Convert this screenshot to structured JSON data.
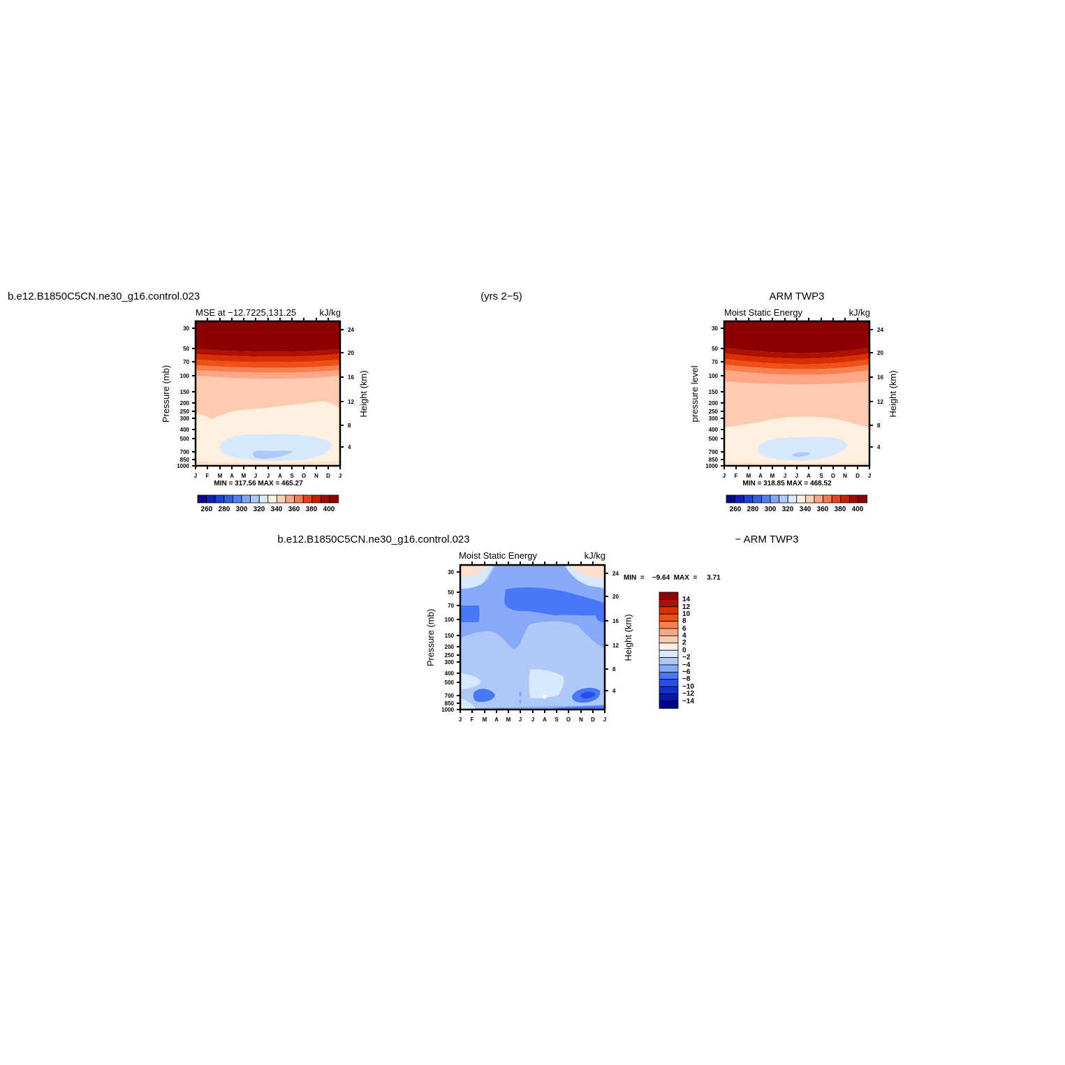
{
  "header": {
    "case_name": "b.e12.B1850C5CN.ne30_g16.control.023",
    "years": "(yrs 2−5)",
    "obs_name": "ARM  TWP3",
    "diff_case_name": "b.e12.B1850C5CN.ne30_g16.control.023",
    "diff_obs_name": "− ARM  TWP3"
  },
  "panels": {
    "model": {
      "subtitle": "MSE  at  −12.7225,131.25",
      "units": "kJ/kg",
      "ylabel": "Pressure  (mb)",
      "y2label": "Height  (km)",
      "minmax": "MIN  =  317.56  MAX  =  465.27"
    },
    "obs": {
      "subtitle": "Moist  Static  Energy",
      "units": "kJ/kg",
      "ylabel": "pressure  level",
      "y2label": "Height  (km)",
      "minmax": "MIN  =  318.85  MAX  =  468.52"
    },
    "diff": {
      "subtitle": "Moist  Static  Energy",
      "units": "kJ/kg",
      "ylabel": "Pressure  (mb)",
      "y2label": "Height  (km)",
      "minmax": "MIN  =    −9.64  MAX  =     3.71"
    }
  },
  "chart_data": [
    {
      "type": "heatmap",
      "title": "MSE  at  −12.7225,131.25",
      "xlabel": "",
      "ylabel": "Pressure  (mb)",
      "y2label": "Height  (km)",
      "units": "kJ/kg",
      "x_ticks": [
        "J",
        "F",
        "M",
        "A",
        "M",
        "J",
        "J",
        "A",
        "S",
        "O",
        "N",
        "D",
        "J"
      ],
      "y_ticks": [
        30,
        50,
        70,
        100,
        150,
        200,
        250,
        300,
        400,
        500,
        700,
        850,
        1000
      ],
      "y2_ticks": [
        4,
        8,
        12,
        16,
        20,
        24
      ],
      "ylim": [
        1000,
        25
      ],
      "y_scale": "log",
      "min": 317.56,
      "max": 465.27,
      "levels": [
        260,
        270,
        280,
        290,
        300,
        310,
        320,
        330,
        340,
        350,
        360,
        370,
        380,
        390,
        400
      ],
      "colorbar_labels": [
        "260",
        "280",
        "300",
        "320",
        "340",
        "360",
        "380",
        "400"
      ],
      "colorbar_colors": [
        "#08088c",
        "#1020b0",
        "#2040d0",
        "#3060e0",
        "#5080f0",
        "#80a8f8",
        "#b0c8f8",
        "#d8e8fc",
        "#fff0e0",
        "#fcd0b8",
        "#f8a888",
        "#f47850",
        "#e84020",
        "#c82000",
        "#a00800",
        "#8c0000"
      ]
    },
    {
      "type": "heatmap",
      "title": "Moist  Static  Energy",
      "xlabel": "",
      "ylabel": "pressure  level",
      "y2label": "Height  (km)",
      "units": "kJ/kg",
      "x_ticks": [
        "J",
        "F",
        "M",
        "A",
        "M",
        "J",
        "J",
        "A",
        "S",
        "O",
        "N",
        "D",
        "J"
      ],
      "y_ticks": [
        30,
        50,
        70,
        100,
        150,
        200,
        250,
        300,
        400,
        500,
        700,
        850,
        1000
      ],
      "y2_ticks": [
        4,
        8,
        12,
        16,
        20,
        24
      ],
      "ylim": [
        1000,
        25
      ],
      "y_scale": "log",
      "min": 318.85,
      "max": 468.52,
      "levels": [
        260,
        270,
        280,
        290,
        300,
        310,
        320,
        330,
        340,
        350,
        360,
        370,
        380,
        390,
        400
      ],
      "colorbar_labels": [
        "260",
        "280",
        "300",
        "320",
        "340",
        "360",
        "380",
        "400"
      ],
      "colorbar_colors": [
        "#08088c",
        "#1020b0",
        "#2040d0",
        "#3060e0",
        "#5080f0",
        "#80a8f8",
        "#b0c8f8",
        "#d8e8fc",
        "#fff0e0",
        "#fcd0b8",
        "#f8a888",
        "#f47850",
        "#e84020",
        "#c82000",
        "#a00800",
        "#8c0000"
      ]
    },
    {
      "type": "heatmap",
      "title": "Moist  Static  Energy",
      "xlabel": "",
      "ylabel": "Pressure  (mb)",
      "y2label": "Height  (km)",
      "units": "kJ/kg",
      "x_ticks": [
        "J",
        "F",
        "M",
        "A",
        "M",
        "J",
        "J",
        "A",
        "S",
        "O",
        "N",
        "D",
        "J"
      ],
      "y_ticks": [
        30,
        50,
        70,
        100,
        150,
        200,
        250,
        300,
        400,
        500,
        700,
        850,
        1000
      ],
      "y2_ticks": [
        4,
        8,
        12,
        16,
        20,
        24
      ],
      "ylim": [
        1000,
        25
      ],
      "y_scale": "log",
      "min": -9.64,
      "max": 3.71,
      "levels": [
        -14,
        -12,
        -10,
        -8,
        -6,
        -4,
        -2,
        0,
        2,
        4,
        6,
        8,
        10,
        12,
        14
      ],
      "colorbar_labels": [
        "14",
        "12",
        "10",
        "8",
        "6",
        "4",
        "2",
        "0",
        "−2",
        "−4",
        "−6",
        "−8",
        "−10",
        "−12",
        "−14"
      ],
      "colorbar_colors": [
        "#8c0000",
        "#b01000",
        "#d83000",
        "#f05018",
        "#f88050",
        "#f8a888",
        "#fcc8b0",
        "#fff0e8",
        "#dce8fc",
        "#b0c8f8",
        "#88a8f8",
        "#4878f8",
        "#2850e8",
        "#1030c8",
        "#0818a8",
        "#00008c"
      ]
    }
  ]
}
